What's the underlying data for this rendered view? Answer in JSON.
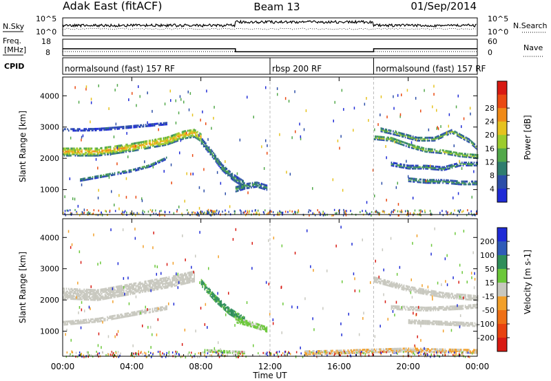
{
  "header": {
    "station": "Adak East (fitACF)",
    "beam": "Beam 13",
    "date": "01/Sep/2014"
  },
  "top_panels": {
    "nsky_label": "N.Sky",
    "nsky_ticks": [
      "10^5",
      "10^0"
    ],
    "nsearch_label": "N.Search",
    "nsearch_ticks": [
      "10^5",
      "10^0"
    ],
    "freq_label_1": "Freq.",
    "freq_label_2": "[MHz]",
    "freq_ticks": [
      "18",
      "8"
    ],
    "nave_label": "Nave",
    "nave_ticks": [
      "60",
      "0"
    ],
    "cpid_label": "CPID",
    "cpid_segments": [
      {
        "label": "normalsound (fast) 157 RF",
        "start_h": 0,
        "end_h": 12
      },
      {
        "label": "rbsp 200 RF",
        "start_h": 12,
        "end_h": 18
      },
      {
        "label": "normalsound (fast) 157 RF",
        "start_h": 18,
        "end_h": 24
      }
    ]
  },
  "power_panel": {
    "ylabel": "Slant Range [km]",
    "yticks": [
      "1000",
      "2000",
      "3000",
      "4000"
    ],
    "colorbar_label": "Power [dB]",
    "colorbar_ticks": [
      "4",
      "8",
      "12",
      "16",
      "20",
      "24",
      "28"
    ],
    "colors": [
      "#1f2bd6",
      "#2c4ea8",
      "#2f7d6e",
      "#52a84a",
      "#9ccc2e",
      "#e6c21f",
      "#f08a18",
      "#ea4a12",
      "#d81a12"
    ]
  },
  "velocity_panel": {
    "ylabel": "Slant Range [km]",
    "yticks": [
      "1000",
      "2000",
      "3000",
      "4000"
    ],
    "colorbar_label": "Velocity [m s-1]",
    "colorbar_ticks": [
      "200",
      "100",
      "50",
      "15",
      "-15",
      "-50",
      "-100",
      "-200"
    ],
    "colors": [
      "#1f2bd6",
      "#2f5bb8",
      "#2f8e5a",
      "#6cc83a",
      "#c8c8bf",
      "#f2a02a",
      "#ef7016",
      "#e8420f",
      "#d81a12"
    ]
  },
  "x_axis": {
    "ticks": [
      "00:00",
      "04:00",
      "08:00",
      "12:00",
      "16:00",
      "20:00",
      "00:00"
    ],
    "label": "Time UT"
  },
  "chart_data": {
    "type": "heatmap",
    "title": "Adak East (fitACF) Beam 13 01/Sep/2014",
    "xlabel": "Time UT",
    "ylabel": "Slant Range [km]",
    "xlim_hours": [
      0,
      24
    ],
    "ylim_km": [
      200,
      4600
    ],
    "power_range_db": [
      0,
      32
    ],
    "velocity_range_ms": [
      -240,
      240
    ],
    "frequency_mhz": [
      {
        "start_h": 0,
        "end_h": 10,
        "value": 12.2
      },
      {
        "start_h": 10,
        "end_h": 18,
        "value": 10.4
      },
      {
        "start_h": 18,
        "end_h": 24,
        "value": 12.2
      }
    ],
    "power_features": [
      {
        "name": "band A",
        "t": [
          0,
          1,
          2,
          3,
          4,
          5,
          6,
          7,
          7.6,
          8
        ],
        "r": [
          2250,
          2250,
          2250,
          2320,
          2400,
          2500,
          2600,
          2800,
          2850,
          2700
        ],
        "w": 260,
        "p": 22
      },
      {
        "name": "band B",
        "t": [
          0,
          1,
          2,
          3,
          4,
          5,
          6
        ],
        "r": [
          2950,
          2950,
          2960,
          3000,
          3050,
          3100,
          3150
        ],
        "w": 60,
        "p": 6
      },
      {
        "name": "band C",
        "t": [
          1,
          2,
          3,
          4,
          5,
          6
        ],
        "r": [
          1350,
          1450,
          1550,
          1650,
          1800,
          2050
        ],
        "w": 70,
        "p": 11
      },
      {
        "name": "descending",
        "t": [
          8,
          8.6,
          9.2,
          9.8,
          10.5
        ],
        "r": [
          2600,
          2200,
          1750,
          1450,
          1200
        ],
        "w": 200,
        "p": 11
      },
      {
        "name": "lower",
        "t": [
          10,
          10.6,
          11.2,
          11.8
        ],
        "r": [
          1050,
          1150,
          1200,
          1100
        ],
        "w": 150,
        "p": 11
      },
      {
        "name": "near range",
        "t": [
          8.4,
          8.9
        ],
        "r": [
          370,
          290
        ],
        "w": 70,
        "p": 28
      },
      {
        "name": "late 1",
        "t": [
          18,
          19,
          20,
          21,
          22,
          23,
          24
        ],
        "r": [
          2700,
          2650,
          2450,
          2300,
          2250,
          2150,
          2100
        ],
        "w": 110,
        "p": 17
      },
      {
        "name": "late 2",
        "t": [
          18.4,
          19.5,
          20.5,
          21.5,
          22.5,
          23.5,
          24
        ],
        "r": [
          2950,
          2800,
          2650,
          2650,
          2900,
          2600,
          2350
        ],
        "w": 100,
        "p": 15
      },
      {
        "name": "late 3",
        "t": [
          19,
          20,
          21,
          22,
          23,
          24
        ],
        "r": [
          1850,
          1750,
          1750,
          1700,
          1850,
          1850
        ],
        "w": 90,
        "p": 11
      },
      {
        "name": "late 4",
        "t": [
          20,
          21,
          22,
          23,
          24
        ],
        "r": [
          1350,
          1300,
          1300,
          1250,
          1250
        ],
        "w": 100,
        "p": 12
      }
    ],
    "velocity_features": [
      {
        "name": "grey band",
        "t": [
          0,
          2,
          4,
          6,
          7.6
        ],
        "r": [
          2250,
          2200,
          2400,
          2600,
          2800
        ],
        "w": 340,
        "v": 0
      },
      {
        "name": "grey low",
        "t": [
          0,
          2,
          4,
          6
        ],
        "r": [
          1300,
          1400,
          1600,
          1800
        ],
        "w": 120,
        "v": 0
      },
      {
        "name": "blue descending",
        "t": [
          8,
          8.8,
          9.6,
          10.5
        ],
        "r": [
          2600,
          2100,
          1700,
          1400
        ],
        "w": 220,
        "v": 90
      },
      {
        "name": "green lower",
        "t": [
          10,
          11,
          11.8
        ],
        "r": [
          1400,
          1250,
          1100
        ],
        "w": 160,
        "v": 35
      },
      {
        "name": "green near",
        "t": [
          8.2,
          10.5
        ],
        "r": [
          420,
          360
        ],
        "w": 70,
        "v": 30
      },
      {
        "name": "orange near",
        "t": [
          14,
          16,
          18,
          20,
          22,
          24
        ],
        "r": [
          360,
          380,
          420,
          450,
          420,
          400
        ],
        "w": 120,
        "v": -25
      },
      {
        "name": "late grey 1",
        "t": [
          18,
          20,
          22,
          24
        ],
        "r": [
          2700,
          2400,
          2200,
          2100
        ],
        "w": 160,
        "v": 0
      },
      {
        "name": "late grey 2",
        "t": [
          19,
          21,
          23,
          24
        ],
        "r": [
          1800,
          1750,
          1800,
          1850
        ],
        "w": 110,
        "v": 0
      },
      {
        "name": "late grey 3",
        "t": [
          20,
          22,
          24
        ],
        "r": [
          1350,
          1300,
          1250
        ],
        "w": 110,
        "v": 0
      }
    ]
  }
}
